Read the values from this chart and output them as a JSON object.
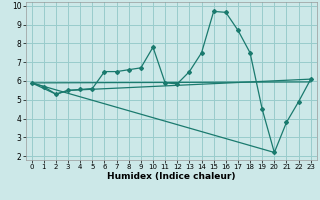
{
  "xlabel": "Humidex (Indice chaleur)",
  "xlim": [
    -0.5,
    23.5
  ],
  "ylim": [
    1.8,
    10.2
  ],
  "yticks": [
    2,
    3,
    4,
    5,
    6,
    7,
    8,
    9,
    10
  ],
  "xticks": [
    0,
    1,
    2,
    3,
    4,
    5,
    6,
    7,
    8,
    9,
    10,
    11,
    12,
    13,
    14,
    15,
    16,
    17,
    18,
    19,
    20,
    21,
    22,
    23
  ],
  "bg_color": "#cce8e8",
  "grid_color": "#99cccc",
  "line_color": "#1a7a6e",
  "line1_x": [
    0,
    1,
    2,
    3,
    4,
    5,
    6,
    7,
    8,
    9,
    10,
    11,
    12,
    13,
    14,
    15,
    16,
    17,
    18,
    19,
    20,
    21,
    22,
    23
  ],
  "line1_y": [
    5.9,
    5.7,
    5.3,
    5.5,
    5.55,
    5.6,
    6.5,
    6.5,
    6.6,
    6.7,
    7.8,
    5.9,
    5.85,
    6.5,
    7.5,
    9.7,
    9.65,
    8.7,
    7.5,
    4.5,
    2.2,
    3.8,
    4.9,
    6.1
  ],
  "line2_x": [
    0,
    2,
    3,
    23
  ],
  "line2_y": [
    5.9,
    5.3,
    5.5,
    6.1
  ],
  "line3_x": [
    0,
    23
  ],
  "line3_y": [
    5.9,
    5.95
  ],
  "line4_x": [
    0,
    20
  ],
  "line4_y": [
    5.9,
    2.2
  ]
}
